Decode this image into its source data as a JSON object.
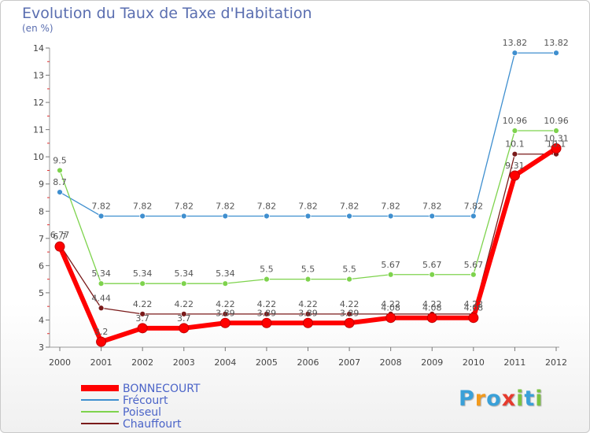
{
  "chart_data": {
    "type": "line",
    "title": "Evolution du Taux de Taxe d'Habitation",
    "subtitle": "(en %)",
    "xlabel": "",
    "ylabel": "",
    "categories": [
      "2000",
      "2001",
      "2002",
      "2003",
      "2004",
      "2005",
      "2006",
      "2007",
      "2008",
      "2009",
      "2010",
      "2011",
      "2012"
    ],
    "ylim": [
      3,
      14
    ],
    "yticks": [
      "3",
      "4",
      "5",
      "6",
      "7",
      "8",
      "9",
      "10",
      "11",
      "12",
      "13",
      "14"
    ],
    "legend_position": "bottom-left",
    "series": [
      {
        "name": "BONNECOURT",
        "color": "#ff0000",
        "values": [
          6.7,
          3.2,
          3.7,
          3.7,
          3.89,
          3.89,
          3.89,
          3.89,
          4.08,
          4.08,
          4.08,
          9.31,
          10.31
        ],
        "labels": [
          "6.7",
          "3.2",
          "3.7",
          "3.7",
          "3.89",
          "3.89",
          "3.89",
          "3.89",
          "4.08",
          "4.08",
          "4.08",
          "9.31",
          "10.31"
        ]
      },
      {
        "name": "Frécourt",
        "color": "#3f8fcf",
        "values": [
          8.7,
          7.82,
          7.82,
          7.82,
          7.82,
          7.82,
          7.82,
          7.82,
          7.82,
          7.82,
          7.82,
          13.82,
          13.82
        ],
        "labels": [
          "8.7",
          "7.82",
          "7.82",
          "7.82",
          "7.82",
          "7.82",
          "7.82",
          "7.82",
          "7.82",
          "7.82",
          "7.82",
          "13.82",
          "13.82"
        ]
      },
      {
        "name": "Poiseul",
        "color": "#7ed34d",
        "values": [
          9.5,
          5.34,
          5.34,
          5.34,
          5.34,
          5.5,
          5.5,
          5.5,
          5.67,
          5.67,
          5.67,
          10.96,
          10.96
        ],
        "labels": [
          "9.5",
          "5.34",
          "5.34",
          "5.34",
          "5.34",
          "5.5",
          "5.5",
          "5.5",
          "5.67",
          "5.67",
          "5.67",
          "10.96",
          "10.96"
        ]
      },
      {
        "name": "Chauffourt",
        "color": "#7a1a1a",
        "values": [
          6.77,
          4.44,
          4.22,
          4.22,
          4.22,
          4.22,
          4.22,
          4.22,
          4.22,
          4.22,
          4.22,
          10.1,
          10.1
        ],
        "labels": [
          "6.77",
          "4.44",
          "4.22",
          "4.22",
          "4.22",
          "4.22",
          "4.22",
          "4.22",
          "4.22",
          "4.22",
          "4.22",
          "10.1",
          "10.1"
        ]
      }
    ]
  },
  "logo": {
    "text": "Proxiti",
    "letters": [
      "P",
      "r",
      "o",
      "x",
      "i",
      "t",
      "i"
    ],
    "colors": [
      "#3aa0d8",
      "#f29a1e",
      "#3aa0d8",
      "#e63b2e",
      "#7cc242",
      "#3aa0d8",
      "#7cc242"
    ]
  }
}
